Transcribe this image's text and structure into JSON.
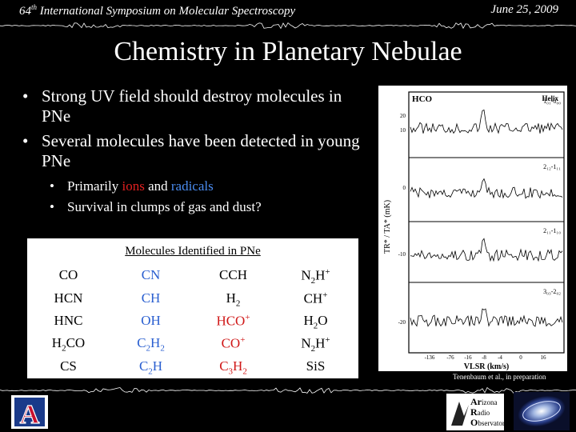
{
  "header": {
    "left_num": "64",
    "left_sup": "th",
    "left_text": " International Symposium on Molecular Spectroscopy",
    "date": "June 25, 2009"
  },
  "title": "Chemistry in Planetary Nebulae",
  "bullets": [
    "Strong UV field should destroy molecules in PNe",
    "Several molecules have been detected in young PNe"
  ],
  "sub_bullets": {
    "first": {
      "pre": "Primarily ",
      "ions": "ions",
      "mid": " and ",
      "radicals": "radicals"
    },
    "second": "Survival in clumps of gas and dust?"
  },
  "molecules": {
    "title": "Molecules Identified in PNe",
    "rows": [
      [
        "CO",
        "CN",
        "CCH",
        "N2H+"
      ],
      [
        "HCN",
        "CH",
        "H2",
        "CH+"
      ],
      [
        "HNC",
        "OH",
        "HCO+",
        "H2O"
      ],
      [
        "H2CO",
        "C2H2",
        "CO+",
        "N2H+"
      ],
      [
        "CS",
        "C2H",
        "C3H2",
        "SiS"
      ]
    ]
  },
  "spectra": {
    "species": "H2CO",
    "object": "Helix",
    "yaxis_label": "TR* / TA* (mK)",
    "xaxis_label": "VLSR (km/s)",
    "yticks": [
      "20",
      "10",
      "0",
      "-10",
      "-20"
    ],
    "xticks": [
      "-136",
      "-76",
      "-16",
      "-8",
      "-4",
      "0",
      "16"
    ],
    "transitions": [
      "1₀₁-0₀₀",
      "2₁₂-1₁₁",
      "2₁₁-1₁₀",
      "3₀₃-2₀₂"
    ]
  },
  "caption": "Tenenbaum et al., in preparation",
  "logos": {
    "ua": "A",
    "aro": [
      "Ar",
      "izona",
      "R",
      "adio",
      "O",
      "bservatory"
    ]
  },
  "colors": {
    "ions": "#e02020",
    "radicals": "#4a8cf0",
    "background": "#000000"
  }
}
